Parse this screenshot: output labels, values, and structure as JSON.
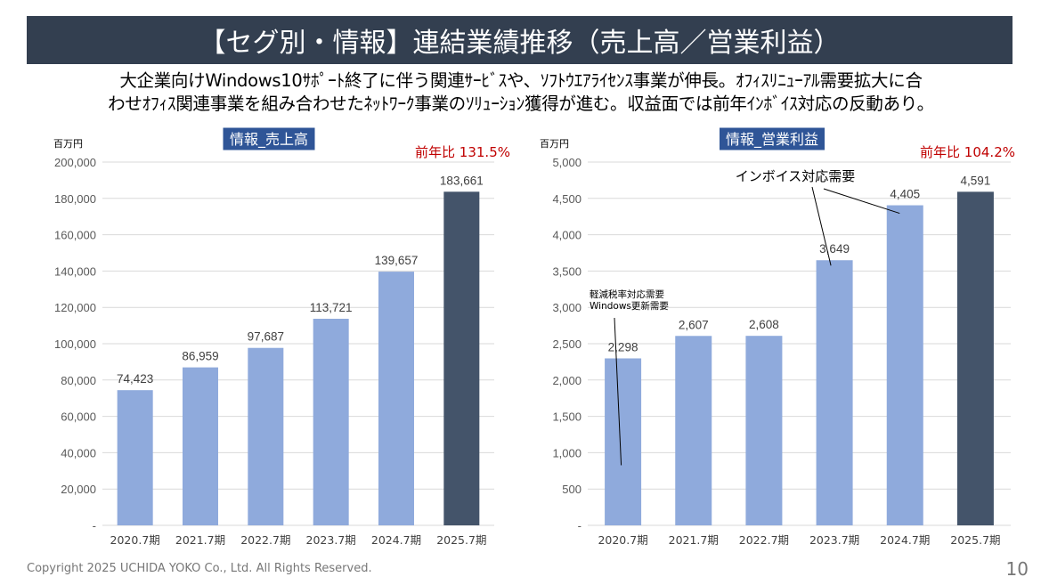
{
  "slide": {
    "title": "【セグ別・情報】連結業績推移（売上高／営業利益）",
    "lead_lines": [
      "大企業向けWindows10ｻﾎﾟｰﾄ終了に伴う関連ｻｰﾋﾞｽや、ｿﾌﾄｳｴｱﾗｲｾﾝｽ事業が伸長。ｵﾌｨｽﾘﾆｭｰｱﾙ需要拡大に合",
      "わせｵﾌｨｽ関連事業を組み合わせたﾈｯﾄﾜｰｸ事業のｿﾘｭｰｼｮﾝ獲得が進む。収益面では前年ｲﾝﾎﾞｲｽ対応の反動あり。"
    ],
    "footer": "Copyright 2025 UCHIDA YOKO Co., Ltd. All Rights Reserved.",
    "page_number": "10"
  },
  "colors": {
    "title_bar": "#333f50",
    "label_box": "#2f5597",
    "bar_past": "#8faadc",
    "bar_latest": "#44546a",
    "yoy_text": "#c00000"
  },
  "chart_data": [
    {
      "type": "bar",
      "title": "情報_売上高",
      "unit": "百万円",
      "yoy": "前年比  131.5%",
      "categories": [
        "2020.7期",
        "2021.7期",
        "2022.7期",
        "2023.7期",
        "2024.7期",
        "2025.7期"
      ],
      "values": [
        74423,
        86959,
        97687,
        113721,
        139657,
        183661
      ],
      "value_labels": [
        "74,423",
        "86,959",
        "97,687",
        "113,721",
        "139,657",
        "183,661"
      ],
      "ylim": [
        0,
        200000
      ],
      "yticks": [
        "-",
        "20,000",
        "40,000",
        "60,000",
        "80,000",
        "100,000",
        "120,000",
        "140,000",
        "160,000",
        "180,000",
        "200,000"
      ],
      "grid": true,
      "annotations": []
    },
    {
      "type": "bar",
      "title": "情報_営業利益",
      "unit": "百万円",
      "yoy": "前年比  104.2%",
      "categories": [
        "2020.7期",
        "2021.7期",
        "2022.7期",
        "2023.7期",
        "2024.7期",
        "2025.7期"
      ],
      "values": [
        2298,
        2607,
        2608,
        3649,
        4405,
        4591
      ],
      "value_labels": [
        "2,298",
        "2,607",
        "2,608",
        "3,649",
        "4,405",
        "4,591"
      ],
      "ylim": [
        0,
        5000
      ],
      "yticks": [
        "-",
        "500",
        "1,000",
        "1,500",
        "2,000",
        "2,500",
        "3,000",
        "3,500",
        "4,000",
        "4,500",
        "5,000"
      ],
      "grid": true,
      "annotations": [
        {
          "text_lines": [
            "軽減税率対応需要",
            "Windows更新需要"
          ],
          "targets": [
            "2020.7期"
          ]
        },
        {
          "text_lines": [
            "インボイス対応需要"
          ],
          "targets": [
            "2023.7期",
            "2024.7期"
          ]
        }
      ]
    }
  ]
}
